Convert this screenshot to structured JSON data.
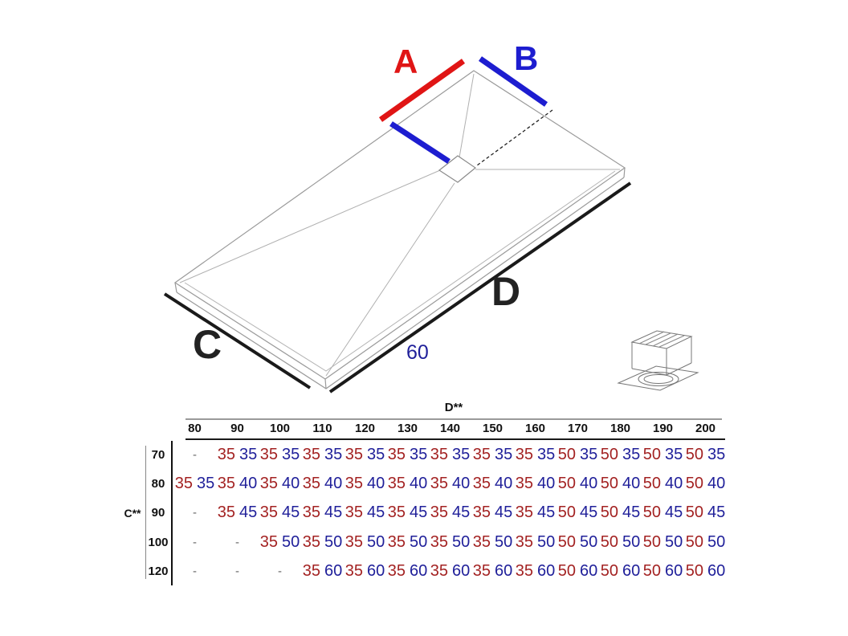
{
  "diagram": {
    "label_a": "A",
    "label_b": "B",
    "label_c": "C",
    "label_d": "D",
    "dim_60": "60",
    "colors": {
      "a_line": "#e01515",
      "b_line": "#1d1dd0",
      "measure_line": "#1a1a1a",
      "sketch_line": "#9a9a9a",
      "value_red": "#a32222",
      "value_blue": "#20209a"
    }
  },
  "table": {
    "d_header": "D**",
    "c_header": "C**",
    "empty_cell": "-",
    "columns": [
      "80",
      "90",
      "100",
      "110",
      "120",
      "130",
      "140",
      "150",
      "160",
      "170",
      "180",
      "190",
      "200"
    ],
    "rows": [
      {
        "label": "70",
        "cells": [
          null,
          [
            "35",
            "35"
          ],
          [
            "35",
            "35"
          ],
          [
            "35",
            "35"
          ],
          [
            "35",
            "35"
          ],
          [
            "35",
            "35"
          ],
          [
            "35",
            "35"
          ],
          [
            "35",
            "35"
          ],
          [
            "35",
            "35"
          ],
          [
            "50",
            "35"
          ],
          [
            "50",
            "35"
          ],
          [
            "50",
            "35"
          ],
          [
            "50",
            "35"
          ]
        ]
      },
      {
        "label": "80",
        "cells": [
          [
            "35",
            "35"
          ],
          [
            "35",
            "40"
          ],
          [
            "35",
            "40"
          ],
          [
            "35",
            "40"
          ],
          [
            "35",
            "40"
          ],
          [
            "35",
            "40"
          ],
          [
            "35",
            "40"
          ],
          [
            "35",
            "40"
          ],
          [
            "35",
            "40"
          ],
          [
            "50",
            "40"
          ],
          [
            "50",
            "40"
          ],
          [
            "50",
            "40"
          ],
          [
            "50",
            "40"
          ]
        ]
      },
      {
        "label": "90",
        "cells": [
          null,
          [
            "35",
            "45"
          ],
          [
            "35",
            "45"
          ],
          [
            "35",
            "45"
          ],
          [
            "35",
            "45"
          ],
          [
            "35",
            "45"
          ],
          [
            "35",
            "45"
          ],
          [
            "35",
            "45"
          ],
          [
            "35",
            "45"
          ],
          [
            "50",
            "45"
          ],
          [
            "50",
            "45"
          ],
          [
            "50",
            "45"
          ],
          [
            "50",
            "45"
          ]
        ]
      },
      {
        "label": "100",
        "cells": [
          null,
          null,
          [
            "35",
            "50"
          ],
          [
            "35",
            "50"
          ],
          [
            "35",
            "50"
          ],
          [
            "35",
            "50"
          ],
          [
            "35",
            "50"
          ],
          [
            "35",
            "50"
          ],
          [
            "35",
            "50"
          ],
          [
            "50",
            "50"
          ],
          [
            "50",
            "50"
          ],
          [
            "50",
            "50"
          ],
          [
            "50",
            "50"
          ]
        ]
      },
      {
        "label": "120",
        "cells": [
          null,
          null,
          null,
          [
            "35",
            "60"
          ],
          [
            "35",
            "60"
          ],
          [
            "35",
            "60"
          ],
          [
            "35",
            "60"
          ],
          [
            "35",
            "60"
          ],
          [
            "35",
            "60"
          ],
          [
            "50",
            "60"
          ],
          [
            "50",
            "60"
          ],
          [
            "50",
            "60"
          ],
          [
            "50",
            "60"
          ]
        ]
      }
    ]
  }
}
